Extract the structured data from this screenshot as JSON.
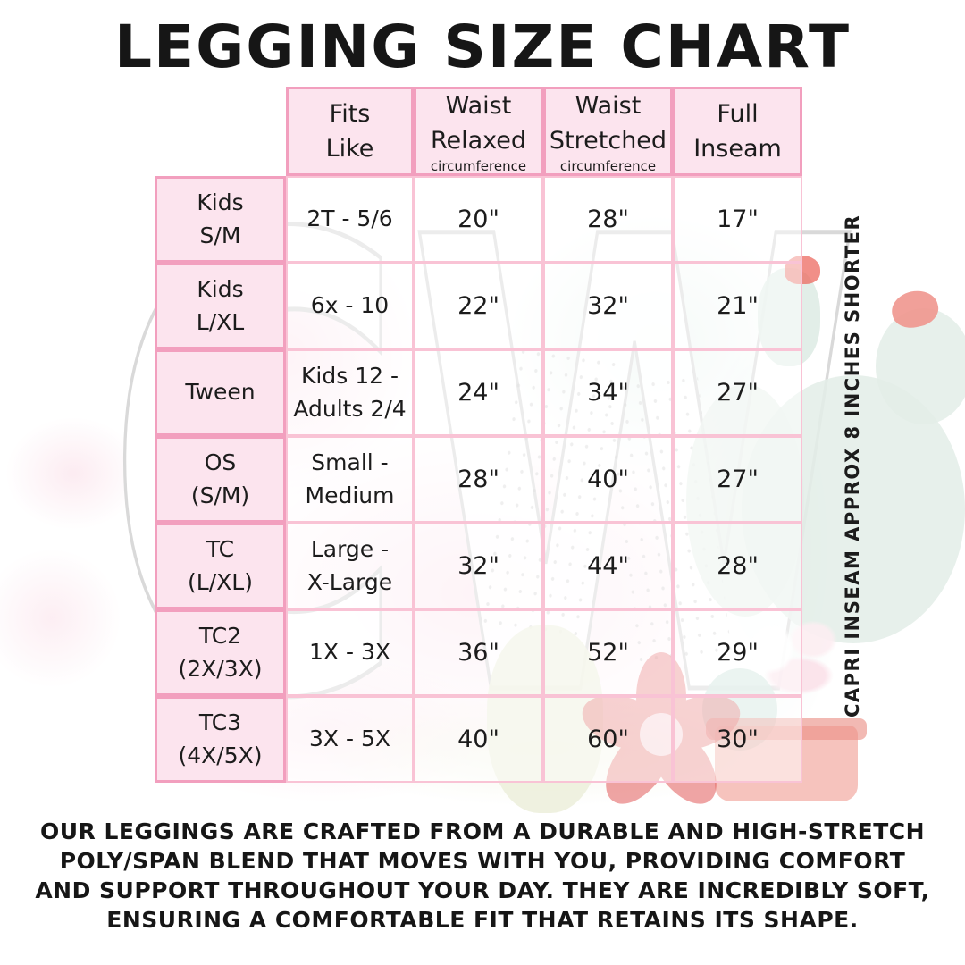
{
  "page": {
    "title": "LEGGING SIZE CHART",
    "watermark": "CW",
    "side_note": "CAPRI INSEAM APPROX 8 INCHES SHORTER",
    "description": "OUR LEGGINGS ARE CRAFTED FROM A DURABLE AND HIGH-STRETCH\nPOLY/SPAN BLEND THAT MOVES WITH YOU, PROVIDING COMFORT\nAND SUPPORT THROUGHOUT YOUR DAY. THEY ARE INCREDIBLY SOFT,\nENSURING A COMFORTABLE FIT THAT RETAINS ITS SHAPE."
  },
  "colors": {
    "header_fill": "#fce4ee",
    "header_border": "#f29fbe",
    "grid_line": "#f9c3d5",
    "text": "#1c1c1c",
    "cactus_mint": "#e3ede7",
    "flower_red": "#e04c4c",
    "flower_coral": "#f0968e"
  },
  "size_table": {
    "columns": [
      {
        "title": "Fits\nLike",
        "sub": ""
      },
      {
        "title": "Waist\nRelaxed",
        "sub": "circumference"
      },
      {
        "title": "Waist\nStretched",
        "sub": "circumference"
      },
      {
        "title": "Full\nInseam",
        "sub": ""
      }
    ],
    "rows": [
      {
        "label": "Kids\nS/M",
        "fits_like": "2T - 5/6",
        "waist_relaxed": "20\"",
        "waist_stretched": "28\"",
        "full_inseam": "17\""
      },
      {
        "label": "Kids\nL/XL",
        "fits_like": "6x - 10",
        "waist_relaxed": "22\"",
        "waist_stretched": "32\"",
        "full_inseam": "21\""
      },
      {
        "label": "Tween",
        "fits_like": "Kids 12 -\nAdults 2/4",
        "waist_relaxed": "24\"",
        "waist_stretched": "34\"",
        "full_inseam": "27\""
      },
      {
        "label": "OS\n(S/M)",
        "fits_like": "Small -\nMedium",
        "waist_relaxed": "28\"",
        "waist_stretched": "40\"",
        "full_inseam": "27\""
      },
      {
        "label": "TC\n(L/XL)",
        "fits_like": "Large -\nX-Large",
        "waist_relaxed": "32\"",
        "waist_stretched": "44\"",
        "full_inseam": "28\""
      },
      {
        "label": "TC2\n(2X/3X)",
        "fits_like": "1X - 3X",
        "waist_relaxed": "36\"",
        "waist_stretched": "52\"",
        "full_inseam": "29\""
      },
      {
        "label": "TC3\n(4X/5X)",
        "fits_like": "3X - 5X",
        "waist_relaxed": "40\"",
        "waist_stretched": "60\"",
        "full_inseam": "30\""
      }
    ]
  }
}
